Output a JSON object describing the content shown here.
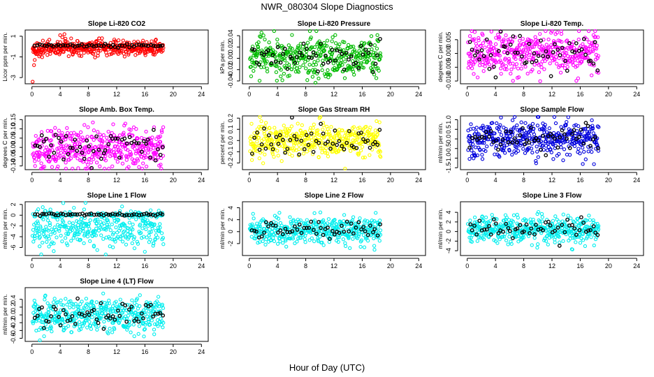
{
  "figure": {
    "title": "NWR_080304  Slope Diagnostics",
    "xlabel": "Hour of Day (UTC)"
  },
  "chart_data": [
    {
      "type": "scatter",
      "title": "Slope Li-820 CO2",
      "ylabel": "Licor ppm per min.",
      "xlim": [
        0,
        24
      ],
      "xticks": [
        0,
        4,
        8,
        12,
        16,
        20,
        24
      ],
      "ylim": [
        -3.6,
        1.6
      ],
      "yticks": [
        -3,
        -1,
        1
      ],
      "color": "#ff0000",
      "series_summary": {
        "hours": [
          0.1,
          18.6
        ],
        "center": -0.15,
        "spread": 0.35,
        "outliers": [
          [
            0.1,
            -3.4
          ],
          [
            0.3,
            -1.8
          ],
          [
            0.4,
            -1.3
          ],
          [
            1.1,
            -0.2
          ],
          [
            2.6,
            -0.7
          ],
          [
            4.0,
            1.1
          ],
          [
            4.3,
            0.9
          ],
          [
            4.6,
            1.2
          ]
        ]
      },
      "black_points": "about 60 markers near 0.1",
      "n_points": 420
    },
    {
      "type": "scatter",
      "title": "Slope Li-820 Pressure",
      "ylabel": "kPa per min.",
      "xlim": [
        0,
        24
      ],
      "xticks": [
        0,
        4,
        8,
        12,
        16,
        20,
        24
      ],
      "ylim": [
        -0.045,
        0.05
      ],
      "yticks": [
        -0.04,
        -0.02,
        0.0,
        0.02,
        0.04
      ],
      "color": "#00bb00",
      "series_summary": {
        "hours": [
          0.1,
          18.6
        ],
        "center": 0.002,
        "spread": 0.018
      },
      "black_points": "about 55 markers around -0.01 to 0.01",
      "n_points": 420
    },
    {
      "type": "scatter",
      "title": "Slope Li-820 Temp.",
      "ylabel": "degrees C per min.",
      "xlim": [
        0,
        24
      ],
      "xticks": [
        0,
        4,
        8,
        12,
        16,
        20,
        24
      ],
      "ylim": [
        -0.011,
        0.0085
      ],
      "yticks": [
        -0.01,
        -0.005,
        0.0,
        0.005
      ],
      "color": "#ff00ff",
      "series_summary": {
        "hours": [
          0.1,
          18.6
        ],
        "center": 0.0,
        "spread": 0.004
      },
      "black_points": "about 55 markers",
      "n_points": 420
    },
    {
      "type": "scatter",
      "title": "Slope Amb. Box Temp.",
      "ylabel": "degrees C per min.",
      "xlim": [
        0,
        24
      ],
      "xticks": [
        0,
        4,
        8,
        12,
        16,
        20,
        24
      ],
      "ylim": [
        -0.12,
        0.17
      ],
      "yticks": [
        -0.1,
        -0.05,
        0.0,
        0.05,
        0.1,
        0.15
      ],
      "color": "#ff00ff",
      "series_summary": {
        "hours": [
          0.1,
          18.6
        ],
        "center": 0.0,
        "spread": 0.055
      },
      "black_points": "about 55 markers",
      "n_points": 420
    },
    {
      "type": "scatter",
      "title": "Slope Gas Stream RH",
      "ylabel": "percent per min.",
      "xlim": [
        0,
        24
      ],
      "xticks": [
        0,
        4,
        8,
        12,
        16,
        20,
        24
      ],
      "ylim": [
        -0.26,
        0.22
      ],
      "yticks": [
        -0.2,
        -0.1,
        0.0,
        0.1,
        0.2
      ],
      "color": "#ffff00",
      "series_summary": {
        "hours": [
          0.1,
          18.6
        ],
        "center": 0.0,
        "spread": 0.08
      },
      "black_points": "about 55 markers",
      "n_points": 420
    },
    {
      "type": "scatter",
      "title": "Slope Sample Flow",
      "ylabel": "ml/min per min.",
      "xlim": [
        0,
        24
      ],
      "xticks": [
        0,
        4,
        8,
        12,
        16,
        20,
        24
      ],
      "ylim": [
        -1.6,
        1.2
      ],
      "yticks": [
        -1.5,
        -1.0,
        -0.5,
        0.0,
        0.5,
        1.0
      ],
      "color": "#0000dd",
      "series_summary": {
        "hours": [
          0.1,
          18.6
        ],
        "center": 0.0,
        "spread": 0.45
      },
      "black_points": "about 55 markers",
      "n_points": 420
    },
    {
      "type": "scatter",
      "title": "Slope Line 1 Flow",
      "ylabel": "ml/min per min.",
      "xlim": [
        0,
        24
      ],
      "xticks": [
        0,
        4,
        8,
        12,
        16,
        20,
        24
      ],
      "ylim": [
        -7.5,
        2.5
      ],
      "yticks": [
        -6,
        -4,
        -2,
        0,
        2
      ],
      "color": "#00eeee",
      "series_summary": {
        "hours": [
          0.1,
          18.6
        ],
        "center": -2.5,
        "spread": 1.8,
        "band": "dense band near 0"
      },
      "black_points": "about 60 markers near 0",
      "n_points": 420
    },
    {
      "type": "scatter",
      "title": "Slope Line 2 Flow",
      "ylabel": "ml/min per min.",
      "xlim": [
        0,
        24
      ],
      "xticks": [
        0,
        4,
        8,
        12,
        16,
        20,
        24
      ],
      "ylim": [
        -4,
        5
      ],
      "yticks": [
        -2,
        0,
        2,
        4
      ],
      "color": "#00eeee",
      "series_summary": {
        "hours": [
          0.1,
          18.6
        ],
        "center": 0.2,
        "spread": 1.1
      },
      "black_points": "about 55 markers",
      "n_points": 420
    },
    {
      "type": "scatter",
      "title": "Slope Line 3 Flow",
      "ylabel": "ml/min per min.",
      "xlim": [
        0,
        24
      ],
      "xticks": [
        0,
        4,
        8,
        12,
        16,
        20,
        24
      ],
      "ylim": [
        -5,
        6.2
      ],
      "yticks": [
        -4,
        -2,
        0,
        2,
        4
      ],
      "color": "#00eeee",
      "series_summary": {
        "hours": [
          0.1,
          18.6
        ],
        "center": 0.4,
        "spread": 1.4
      },
      "black_points": "about 55 markers",
      "n_points": 420
    },
    {
      "type": "scatter",
      "title": "Slope Line 4 (LT) Flow",
      "ylabel": "ml/min per min.",
      "xlim": [
        0,
        24
      ],
      "xticks": [
        0,
        4,
        8,
        12,
        16,
        20,
        24
      ],
      "ylim": [
        -0.68,
        0.7
      ],
      "yticks": [
        -0.6,
        -0.4,
        -0.2,
        0.0,
        0.2,
        0.4
      ],
      "color": "#00eeee",
      "series_summary": {
        "hours": [
          0.1,
          18.6
        ],
        "center": 0.0,
        "spread": 0.22
      },
      "black_points": "about 55 markers",
      "n_points": 420
    }
  ]
}
